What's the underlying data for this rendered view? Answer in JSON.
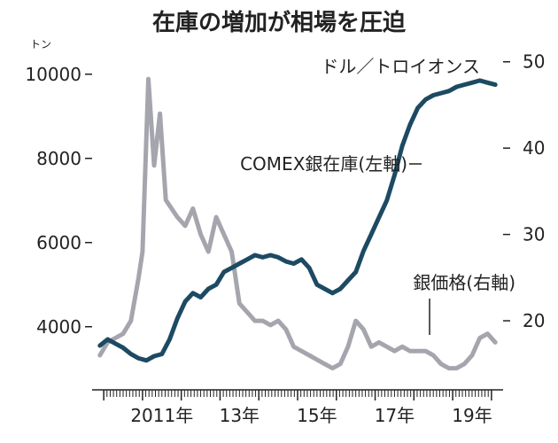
{
  "chart_data": {
    "type": "line",
    "title": "在庫の増加が相場を圧迫",
    "left_axis": {
      "unit": "トン",
      "ticks": [
        4000,
        6000,
        8000,
        10000
      ],
      "ylim": [
        2500,
        10500
      ]
    },
    "right_axis": {
      "unit": "ドル／トロイオンス",
      "ticks": [
        20,
        30,
        40,
        50
      ],
      "ylim": [
        12,
        51
      ]
    },
    "x_axis": {
      "ticks": [
        "2011年",
        "13年",
        "15年",
        "17年",
        "19年"
      ],
      "tick_years": [
        2011,
        2013,
        2015,
        2017,
        2019
      ],
      "range": [
        2009.7,
        2020.3
      ]
    },
    "series": [
      {
        "name": "COMEX銀在庫(左軸)",
        "axis": "left",
        "color": "#1d4a63",
        "x": [
          2009.9,
          2010.1,
          2010.3,
          2010.5,
          2010.7,
          2010.9,
          2011.1,
          2011.3,
          2011.5,
          2011.7,
          2011.9,
          2012.1,
          2012.3,
          2012.5,
          2012.7,
          2012.9,
          2013.1,
          2013.3,
          2013.5,
          2013.7,
          2013.9,
          2014.1,
          2014.3,
          2014.5,
          2014.7,
          2014.9,
          2015.1,
          2015.3,
          2015.5,
          2015.7,
          2015.9,
          2016.1,
          2016.3,
          2016.5,
          2016.7,
          2016.9,
          2017.1,
          2017.3,
          2017.5,
          2017.7,
          2017.9,
          2018.1,
          2018.3,
          2018.5,
          2018.7,
          2018.9,
          2019.1,
          2019.3,
          2019.5,
          2019.7,
          2019.9,
          2020.1
        ],
        "values": [
          3550,
          3700,
          3600,
          3500,
          3350,
          3250,
          3200,
          3300,
          3350,
          3700,
          4200,
          4600,
          4800,
          4700,
          4900,
          5000,
          5300,
          5400,
          5500,
          5600,
          5700,
          5650,
          5700,
          5650,
          5550,
          5500,
          5600,
          5400,
          5000,
          4900,
          4800,
          4900,
          5100,
          5300,
          5800,
          6200,
          6600,
          7000,
          7600,
          8300,
          8800,
          9200,
          9400,
          9500,
          9550,
          9600,
          9700,
          9750,
          9800,
          9850,
          9800,
          9750
        ]
      },
      {
        "name": "銀価格(右軸)",
        "axis": "right",
        "color": "#a5a5ae",
        "x": [
          2009.9,
          2010.1,
          2010.3,
          2010.5,
          2010.7,
          2010.9,
          2011.0,
          2011.15,
          2011.3,
          2011.45,
          2011.6,
          2011.75,
          2011.9,
          2012.1,
          2012.3,
          2012.5,
          2012.7,
          2012.9,
          2013.1,
          2013.3,
          2013.5,
          2013.7,
          2013.9,
          2014.1,
          2014.3,
          2014.5,
          2014.7,
          2014.9,
          2015.1,
          2015.3,
          2015.5,
          2015.7,
          2015.9,
          2016.1,
          2016.3,
          2016.5,
          2016.7,
          2016.9,
          2017.1,
          2017.3,
          2017.5,
          2017.7,
          2017.9,
          2018.1,
          2018.3,
          2018.5,
          2018.7,
          2018.9,
          2019.1,
          2019.3,
          2019.5,
          2019.7,
          2019.9,
          2020.1
        ],
        "values": [
          16,
          17.5,
          18,
          18.5,
          20,
          25,
          28,
          48,
          38,
          44,
          34,
          33,
          32,
          31,
          33,
          30,
          28,
          32,
          30,
          28,
          22,
          21,
          20,
          20,
          19.5,
          20,
          19,
          17,
          16.5,
          16,
          15.5,
          15,
          14.5,
          15,
          17,
          20,
          19,
          17,
          17.5,
          17,
          16.5,
          17,
          16.5,
          16.5,
          16.5,
          16,
          15,
          14.5,
          14.5,
          15,
          16,
          18,
          18.5,
          17.5
        ]
      }
    ],
    "grid": false,
    "legend": "inline labels"
  }
}
